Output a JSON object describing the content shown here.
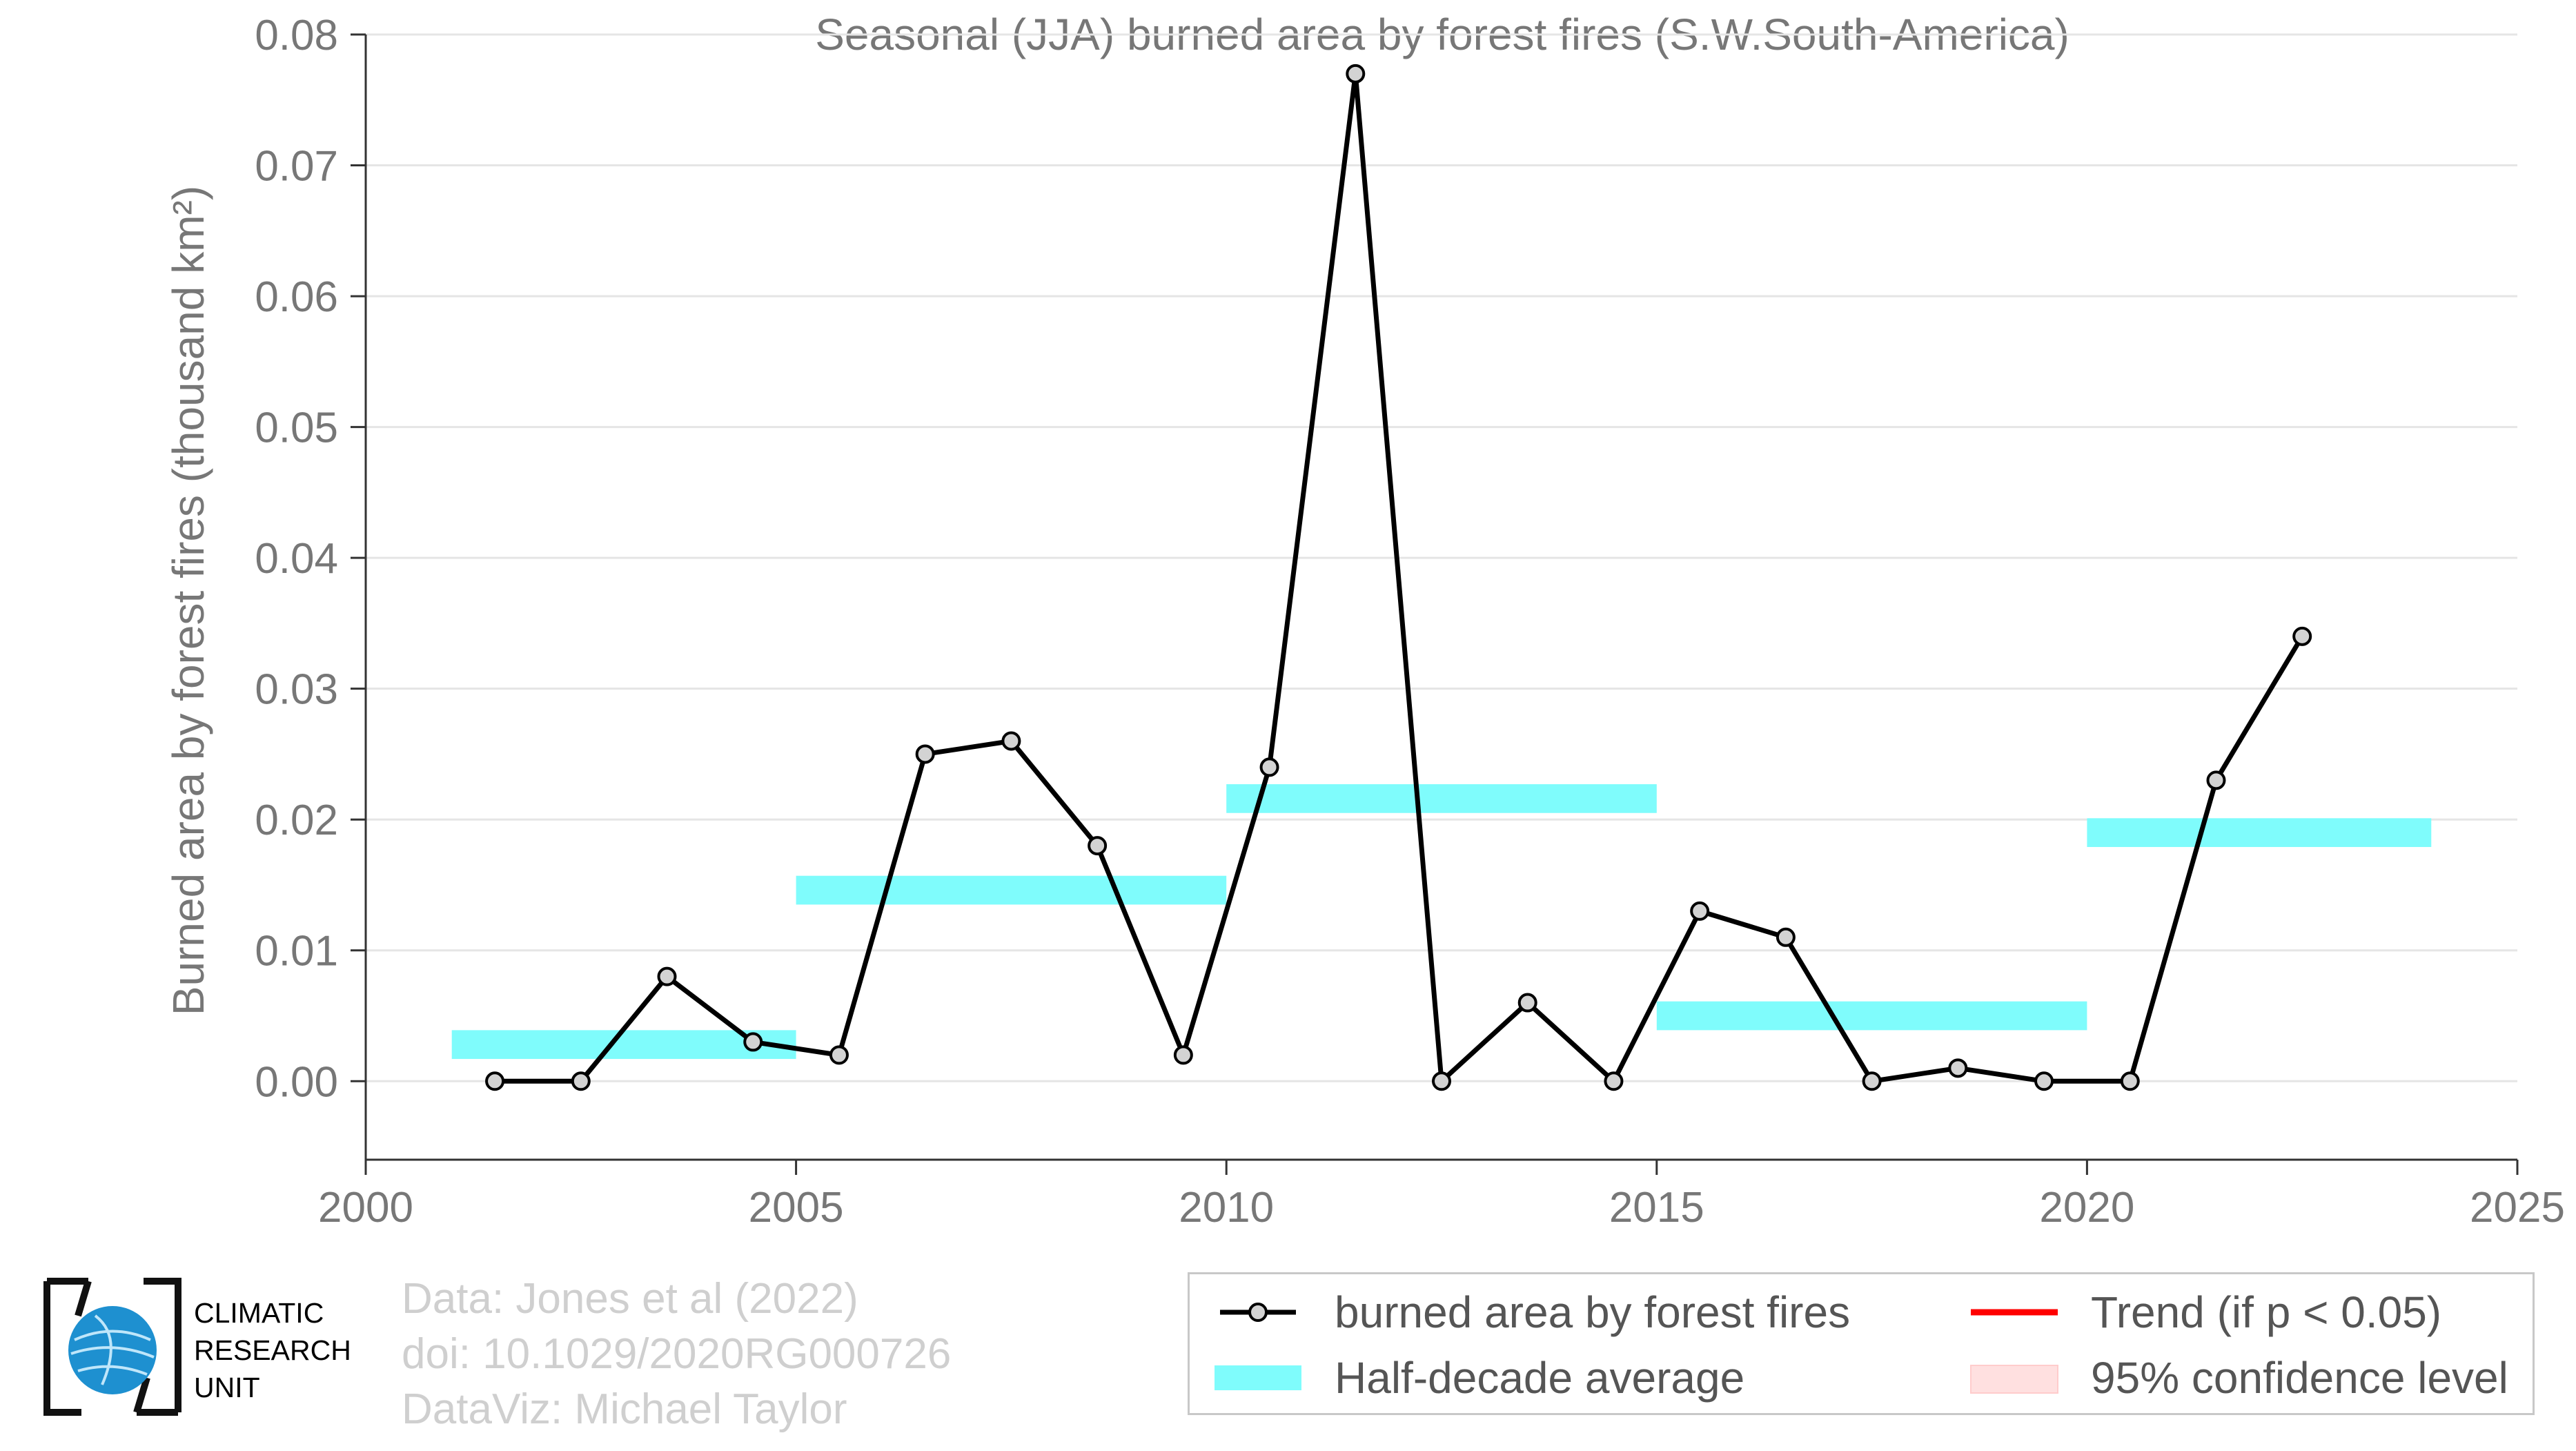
{
  "chart_data": {
    "type": "line",
    "title": "Seasonal (JJA) burned area by forest fires (S.W.South-America)",
    "ylabel": "Burned area by forest fires (thousand km²)",
    "xlabel": "",
    "xlim": [
      2000,
      2025
    ],
    "ylim": [
      -0.006,
      0.08
    ],
    "xticks": [
      2000,
      2005,
      2010,
      2015,
      2020,
      2025
    ],
    "yticks": [
      "0.00",
      "0.01",
      "0.02",
      "0.03",
      "0.04",
      "0.05",
      "0.06",
      "0.07",
      "0.08"
    ],
    "grid": true,
    "series": [
      {
        "name": "burned area by forest fires",
        "color": "#000000",
        "marker_fill": "#d3d3d3",
        "x": [
          2001.5,
          2002.5,
          2003.5,
          2004.5,
          2005.5,
          2006.5,
          2007.5,
          2008.5,
          2009.5,
          2010.5,
          2011.5,
          2012.5,
          2013.5,
          2014.5,
          2015.5,
          2016.5,
          2017.5,
          2018.5,
          2019.5,
          2020.5,
          2021.5,
          2022.5
        ],
        "y": [
          0.0,
          0.0,
          0.008,
          0.003,
          0.002,
          0.025,
          0.026,
          0.018,
          0.002,
          0.024,
          0.077,
          0.0,
          0.006,
          0.0,
          0.013,
          0.011,
          0.0,
          0.001,
          0.0,
          0.0,
          0.023,
          0.034
        ]
      }
    ],
    "half_decade_average": {
      "name": "Half-decade average",
      "color": "#7ffcfc",
      "segments": [
        {
          "x0": 2001.0,
          "x1": 2005.0,
          "y": 0.0028
        },
        {
          "x0": 2005.0,
          "x1": 2010.0,
          "y": 0.0146
        },
        {
          "x0": 2010.0,
          "x1": 2015.0,
          "y": 0.0216
        },
        {
          "x0": 2015.0,
          "x1": 2020.0,
          "y": 0.005
        },
        {
          "x0": 2020.0,
          "x1": 2024.0,
          "y": 0.019
        }
      ]
    },
    "legend_position": "bottom-right"
  },
  "legend": {
    "series_label": "burned area by forest fires",
    "average_label": "Half-decade average",
    "trend_label": "Trend (if p < 0.05)",
    "trend_color": "#ff0000",
    "ci_label": "95% confidence level",
    "ci_color": "#ffe0e0"
  },
  "credits": {
    "data": "Data: Jones et al (2022)",
    "doi": "doi: 10.1029/2020RG000726",
    "dataviz": "DataViz: Michael Taylor"
  },
  "logo": {
    "line1": "CLIMATIC",
    "line2": "RESEARCH",
    "line3": "UNIT",
    "globe_color": "#1e90d0"
  }
}
